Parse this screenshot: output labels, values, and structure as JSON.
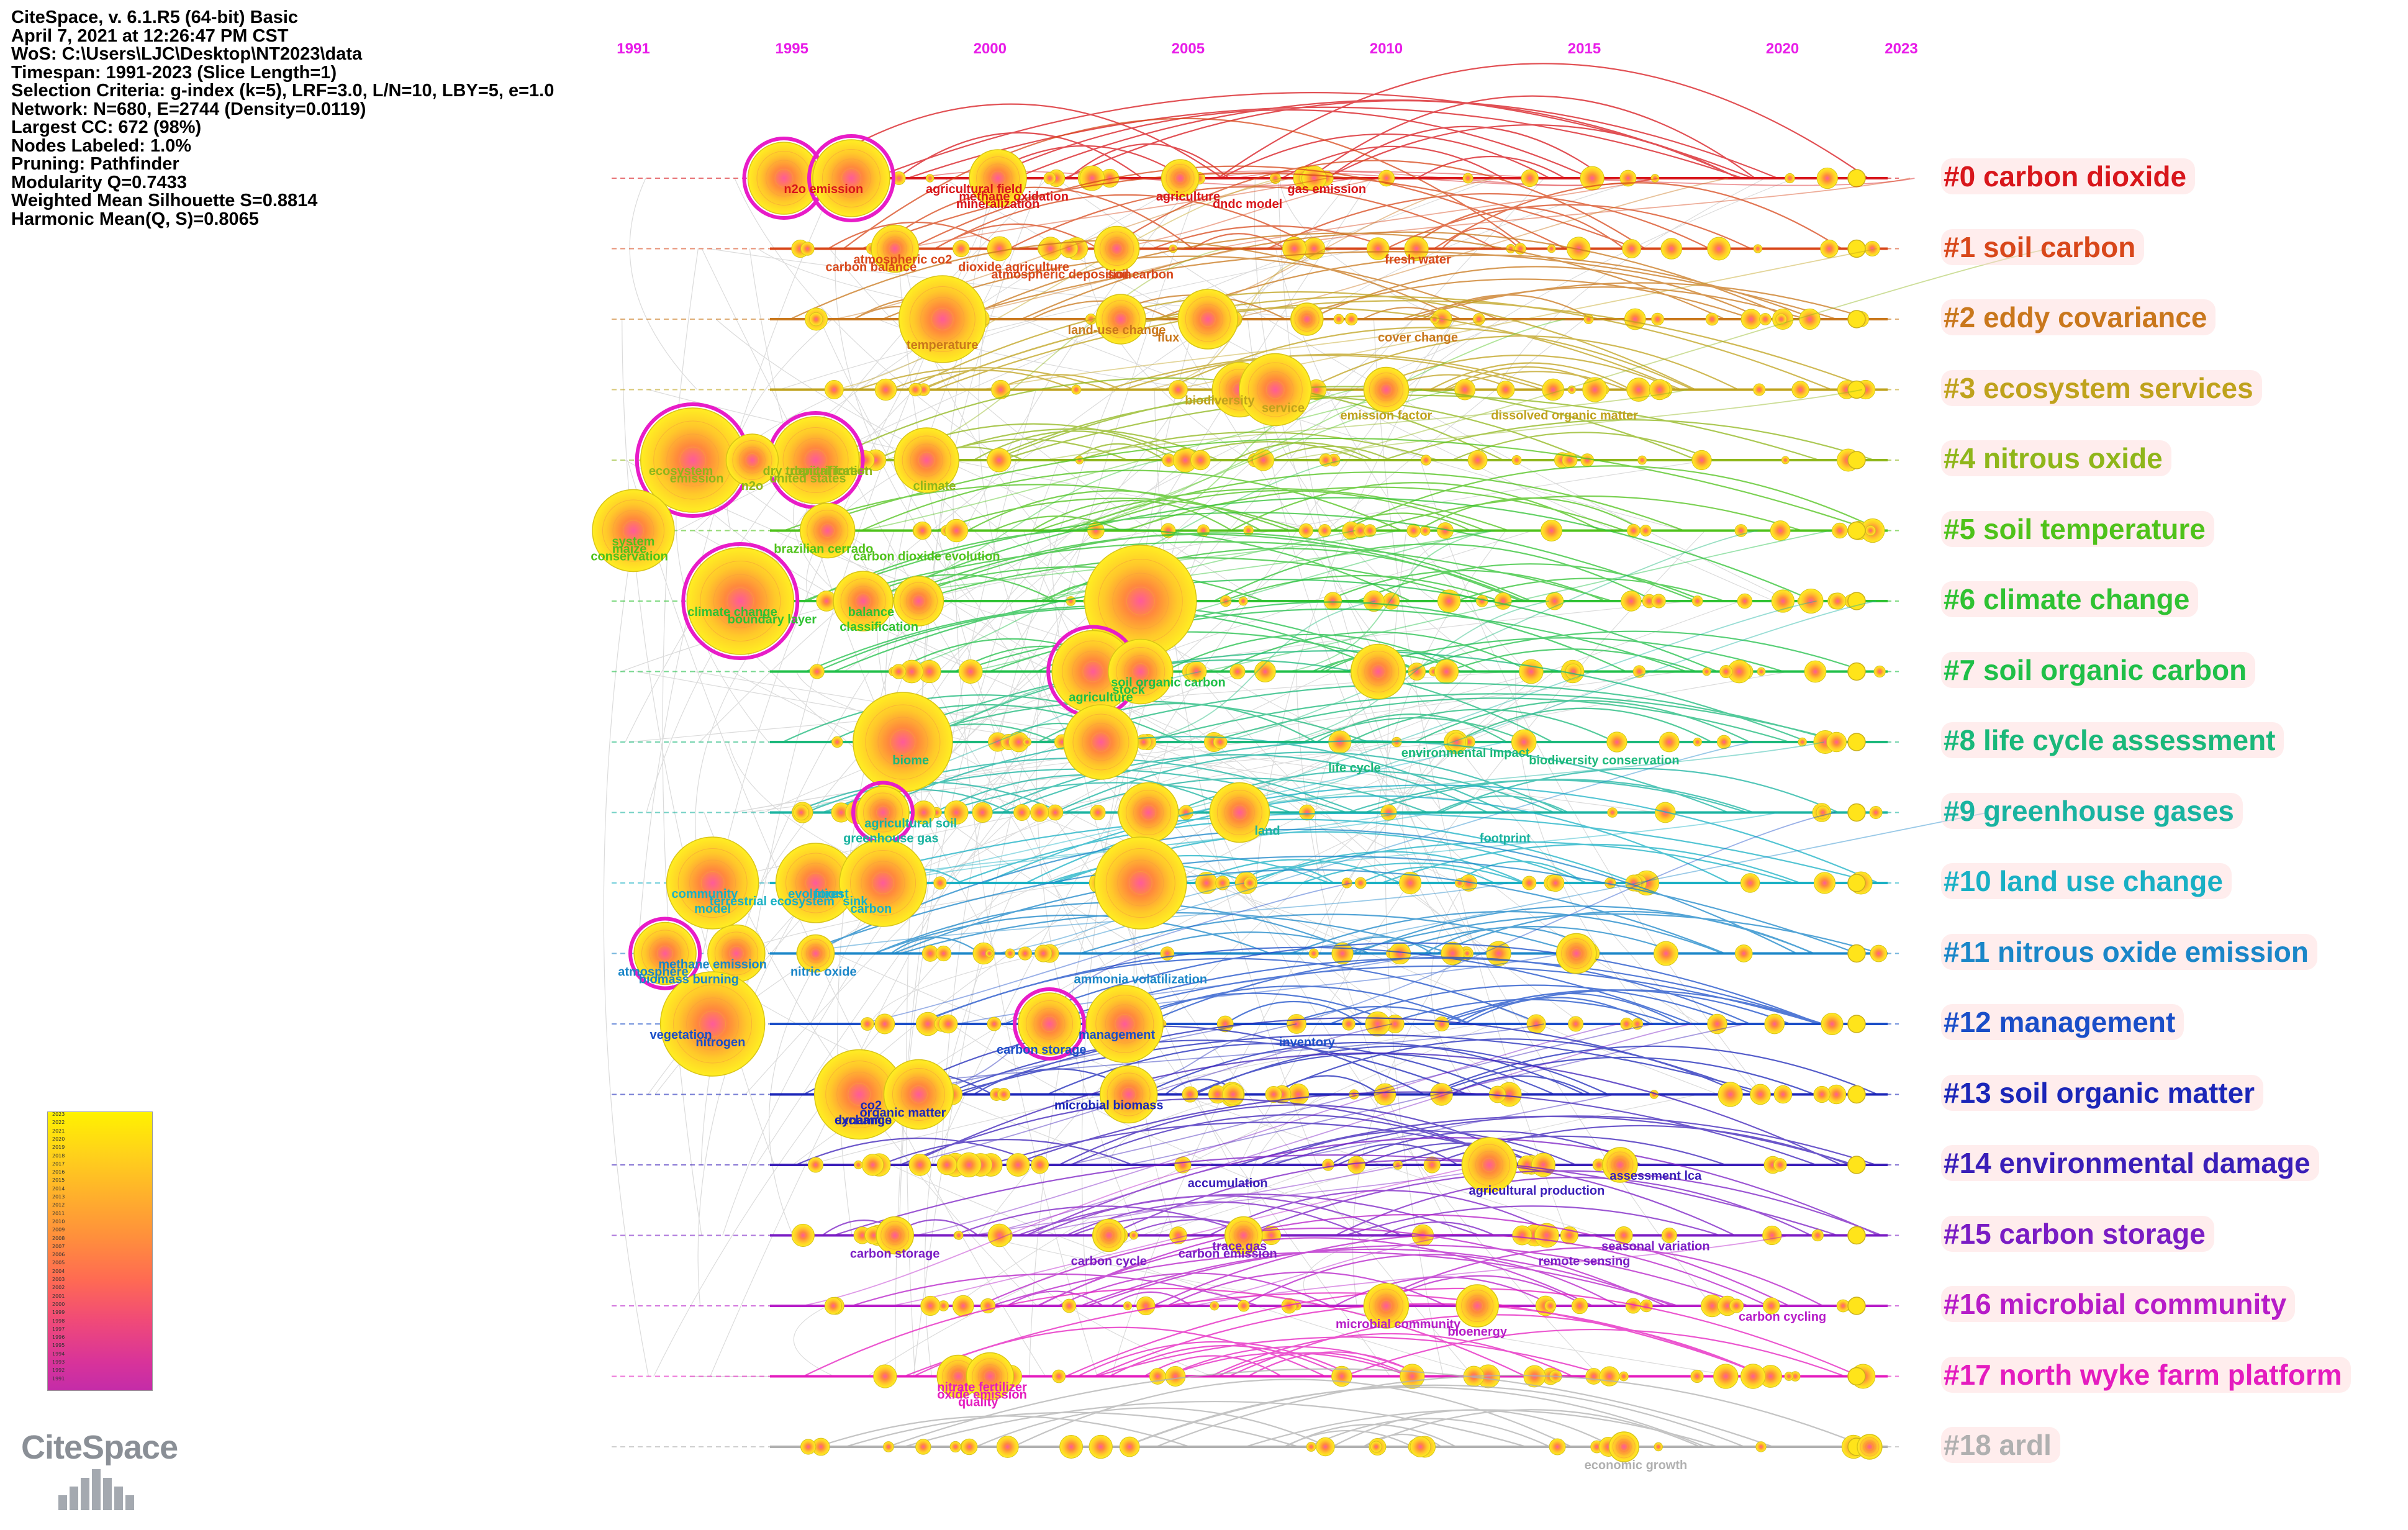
{
  "info_lines": [
    "CiteSpace, v. 6.1.R5 (64-bit) Basic",
    "April 7, 2021 at 12:26:47 PM CST",
    "WoS: C:\\Users\\LJC\\Desktop\\NT2023\\data",
    "Timespan: 1991-2023 (Slice Length=1)",
    "Selection Criteria: g-index (k=5), LRF=3.0, L/N=10, LBY=5, e=1.0",
    "Network: N=680, E=2744 (Density=0.0119)",
    "Largest CC: 672 (98%)",
    "Nodes Labeled: 1.0%",
    "Pruning: Pathfinder",
    "Modularity Q=0.7433",
    "Weighted Mean Silhouette S=0.8814",
    "Harmonic Mean(Q, S)=0.8065"
  ],
  "year_axis": {
    "labels": [
      "1991",
      "1995",
      "2000",
      "2005",
      "2010",
      "2015",
      "2020",
      "2023"
    ],
    "start": 1991,
    "end": 2023,
    "color": "#e81ce8"
  },
  "clusters": [
    {
      "id": "#0",
      "label": "#0 carbon dioxide",
      "color": "#d8161b"
    },
    {
      "id": "#1",
      "label": "#1 soil carbon",
      "color": "#d8471a"
    },
    {
      "id": "#2",
      "label": "#2 eddy covariance",
      "color": "#c9771c"
    },
    {
      "id": "#3",
      "label": "#3 ecosystem services",
      "color": "#bfa21c"
    },
    {
      "id": "#4",
      "label": "#4 nitrous oxide",
      "color": "#8fb61a"
    },
    {
      "id": "#5",
      "label": "#5 soil temperature",
      "color": "#4fc21a"
    },
    {
      "id": "#6",
      "label": "#6 climate change",
      "color": "#2fc232"
    },
    {
      "id": "#7",
      "label": "#7 soil organic carbon",
      "color": "#1fbf48"
    },
    {
      "id": "#8",
      "label": "#8 life cycle assessment",
      "color": "#1ab87a"
    },
    {
      "id": "#9",
      "label": "#9 greenhouse gases",
      "color": "#19b3a0"
    },
    {
      "id": "#10",
      "label": "#10 land use change",
      "color": "#19b0c4"
    },
    {
      "id": "#11",
      "label": "#11 nitrous oxide emission",
      "color": "#1a86c8"
    },
    {
      "id": "#12",
      "label": "#12 management",
      "color": "#1a4ec8"
    },
    {
      "id": "#13",
      "label": "#13 soil organic matter",
      "color": "#1b26b8"
    },
    {
      "id": "#14",
      "label": "#14 environmental damage",
      "color": "#3a1eb8"
    },
    {
      "id": "#15",
      "label": "#15 carbon storage",
      "color": "#7a1cc4"
    },
    {
      "id": "#16",
      "label": "#16 microbial community",
      "color": "#b61cc8"
    },
    {
      "id": "#17",
      "label": "#17 north wyke farm platform",
      "color": "#e41cbf"
    },
    {
      "id": "#18",
      "label": "#18 ardl",
      "color": "#b0b0b0"
    }
  ],
  "node_labels": [
    {
      "text": "n2o emission",
      "cluster": 0,
      "year": 1995.8
    },
    {
      "text": "methane oxidation",
      "cluster": 0,
      "year": 2000.6
    },
    {
      "text": "mineralization",
      "cluster": 0,
      "year": 2000.2
    },
    {
      "text": "agricultural field",
      "cluster": 0,
      "year": 1999.6
    },
    {
      "text": "agriculture",
      "cluster": 0,
      "year": 2005.0
    },
    {
      "text": "dndc model",
      "cluster": 0,
      "year": 2006.5
    },
    {
      "text": "gas emission",
      "cluster": 0,
      "year": 2008.5
    },
    {
      "text": "carbon balance",
      "cluster": 1,
      "year": 1997.0
    },
    {
      "text": "atmospheric deposition",
      "cluster": 1,
      "year": 2001.8
    },
    {
      "text": "atmospheric co2",
      "cluster": 1,
      "year": 1997.8
    },
    {
      "text": "dioxide agriculture",
      "cluster": 1,
      "year": 2000.6
    },
    {
      "text": "soil carbon",
      "cluster": 1,
      "year": 2003.8
    },
    {
      "text": "fresh water",
      "cluster": 1,
      "year": 2010.8
    },
    {
      "text": "flux",
      "cluster": 2,
      "year": 2004.5
    },
    {
      "text": "temperature",
      "cluster": 2,
      "year": 1998.8
    },
    {
      "text": "land-use change",
      "cluster": 2,
      "year": 2003.2
    },
    {
      "text": "cover change",
      "cluster": 2,
      "year": 2010.8
    },
    {
      "text": "emission factor",
      "cluster": 3,
      "year": 2010.0
    },
    {
      "text": "biodiversity",
      "cluster": 3,
      "year": 2005.8
    },
    {
      "text": "service",
      "cluster": 3,
      "year": 2007.4
    },
    {
      "text": "dissolved organic matter",
      "cluster": 3,
      "year": 2014.5
    },
    {
      "text": "ecosystem",
      "cluster": 4,
      "year": 1992.2
    },
    {
      "text": "emission",
      "cluster": 4,
      "year": 1992.6
    },
    {
      "text": "n2o",
      "cluster": 4,
      "year": 1994.0
    },
    {
      "text": "dry tropical forest",
      "cluster": 4,
      "year": 1995.6
    },
    {
      "text": "united states",
      "cluster": 4,
      "year": 1995.4
    },
    {
      "text": "climate",
      "cluster": 4,
      "year": 1998.6
    },
    {
      "text": "denitrification",
      "cluster": 4,
      "year": 1996.0
    },
    {
      "text": "maize",
      "cluster": 5,
      "year": 1990.9
    },
    {
      "text": "conservation",
      "cluster": 5,
      "year": 1990.9
    },
    {
      "text": "system",
      "cluster": 5,
      "year": 1991.0
    },
    {
      "text": "brazilian cerrado",
      "cluster": 5,
      "year": 1995.8
    },
    {
      "text": "carbon dioxide evolution",
      "cluster": 5,
      "year": 1998.4
    },
    {
      "text": "balance",
      "cluster": 6,
      "year": 1997.0
    },
    {
      "text": "boundary layer",
      "cluster": 6,
      "year": 1994.5
    },
    {
      "text": "classification",
      "cluster": 6,
      "year": 1997.2
    },
    {
      "text": "climate change",
      "cluster": 6,
      "year": 1993.5
    },
    {
      "text": "stock",
      "cluster": 7,
      "year": 2003.5
    },
    {
      "text": "agriculture",
      "cluster": 7,
      "year": 2002.8
    },
    {
      "text": "soil organic carbon",
      "cluster": 7,
      "year": 2004.5
    },
    {
      "text": "biome",
      "cluster": 8,
      "year": 1998.0
    },
    {
      "text": "life cycle",
      "cluster": 8,
      "year": 2009.2
    },
    {
      "text": "environmental impact",
      "cluster": 8,
      "year": 2012.0
    },
    {
      "text": "biodiversity conservation",
      "cluster": 8,
      "year": 2015.5
    },
    {
      "text": "greenhouse gas",
      "cluster": 9,
      "year": 1997.5
    },
    {
      "text": "agricultural soil",
      "cluster": 9,
      "year": 1998.0
    },
    {
      "text": "land",
      "cluster": 9,
      "year": 2007.0
    },
    {
      "text": "footprint",
      "cluster": 9,
      "year": 2013.0
    },
    {
      "text": "community",
      "cluster": 10,
      "year": 1992.8
    },
    {
      "text": "terrestrial ecosystem",
      "cluster": 10,
      "year": 1994.5
    },
    {
      "text": "model",
      "cluster": 10,
      "year": 1993.0
    },
    {
      "text": "forest",
      "cluster": 10,
      "year": 1996.0
    },
    {
      "text": "sink",
      "cluster": 10,
      "year": 1996.6
    },
    {
      "text": "carbon",
      "cluster": 10,
      "year": 1997.0
    },
    {
      "text": "evolution",
      "cluster": 10,
      "year": 1995.6
    },
    {
      "text": "atmosphere",
      "cluster": 11,
      "year": 1991.5
    },
    {
      "text": "biomass burning",
      "cluster": 11,
      "year": 1992.4
    },
    {
      "text": "methane emission",
      "cluster": 11,
      "year": 1993.0
    },
    {
      "text": "nitric oxide",
      "cluster": 11,
      "year": 1995.8
    },
    {
      "text": "ammonia volatilization",
      "cluster": 11,
      "year": 2003.8
    },
    {
      "text": "vegetation",
      "cluster": 12,
      "year": 1992.2
    },
    {
      "text": "nitrogen",
      "cluster": 12,
      "year": 1993.2
    },
    {
      "text": "carbon storage",
      "cluster": 12,
      "year": 2001.3
    },
    {
      "text": "management",
      "cluster": 12,
      "year": 2003.2
    },
    {
      "text": "inventory",
      "cluster": 12,
      "year": 2008.0
    },
    {
      "text": "exchange",
      "cluster": 13,
      "year": 1996.8
    },
    {
      "text": "co2",
      "cluster": 13,
      "year": 1997.0
    },
    {
      "text": "organic matter",
      "cluster": 13,
      "year": 1997.8
    },
    {
      "text": "dynamics",
      "cluster": 13,
      "year": 1996.8
    },
    {
      "text": "microbial biomass",
      "cluster": 13,
      "year": 2003.0
    },
    {
      "text": "accumulation",
      "cluster": 14,
      "year": 2006.0
    },
    {
      "text": "agricultural production",
      "cluster": 14,
      "year": 2013.8
    },
    {
      "text": "assessment lca",
      "cluster": 14,
      "year": 2016.8
    },
    {
      "text": "carbon storage",
      "cluster": 15,
      "year": 1997.6
    },
    {
      "text": "carbon cycle",
      "cluster": 15,
      "year": 2003.0
    },
    {
      "text": "trace gas",
      "cluster": 15,
      "year": 2006.3
    },
    {
      "text": "carbon emission",
      "cluster": 15,
      "year": 2006.0
    },
    {
      "text": "remote sensing",
      "cluster": 15,
      "year": 2015.0
    },
    {
      "text": "seasonal variation",
      "cluster": 15,
      "year": 2016.8
    },
    {
      "text": "microbial community",
      "cluster": 16,
      "year": 2010.3
    },
    {
      "text": "bioenergy",
      "cluster": 16,
      "year": 2012.3
    },
    {
      "text": "carbon cycling",
      "cluster": 16,
      "year": 2020.0
    },
    {
      "text": "oxide emission",
      "cluster": 17,
      "year": 1999.8
    },
    {
      "text": "quality",
      "cluster": 17,
      "year": 1999.7
    },
    {
      "text": "nitrate fertilizer",
      "cluster": 17,
      "year": 1999.8
    },
    {
      "text": "economic growth",
      "cluster": 18,
      "year": 2016.3
    }
  ],
  "logo": {
    "text": "CiteSpace"
  },
  "legend": {
    "ticks": [
      "2023",
      "2022",
      "2021",
      "2020",
      "2019",
      "2018",
      "2017",
      "2016",
      "2015",
      "2014",
      "2013",
      "2012",
      "2011",
      "2010",
      "2009",
      "2008",
      "2007",
      "2006",
      "2005",
      "2004",
      "2003",
      "2002",
      "2001",
      "2000",
      "1999",
      "1998",
      "1997",
      "1996",
      "1995",
      "1994",
      "1993",
      "1992",
      "1991"
    ]
  }
}
